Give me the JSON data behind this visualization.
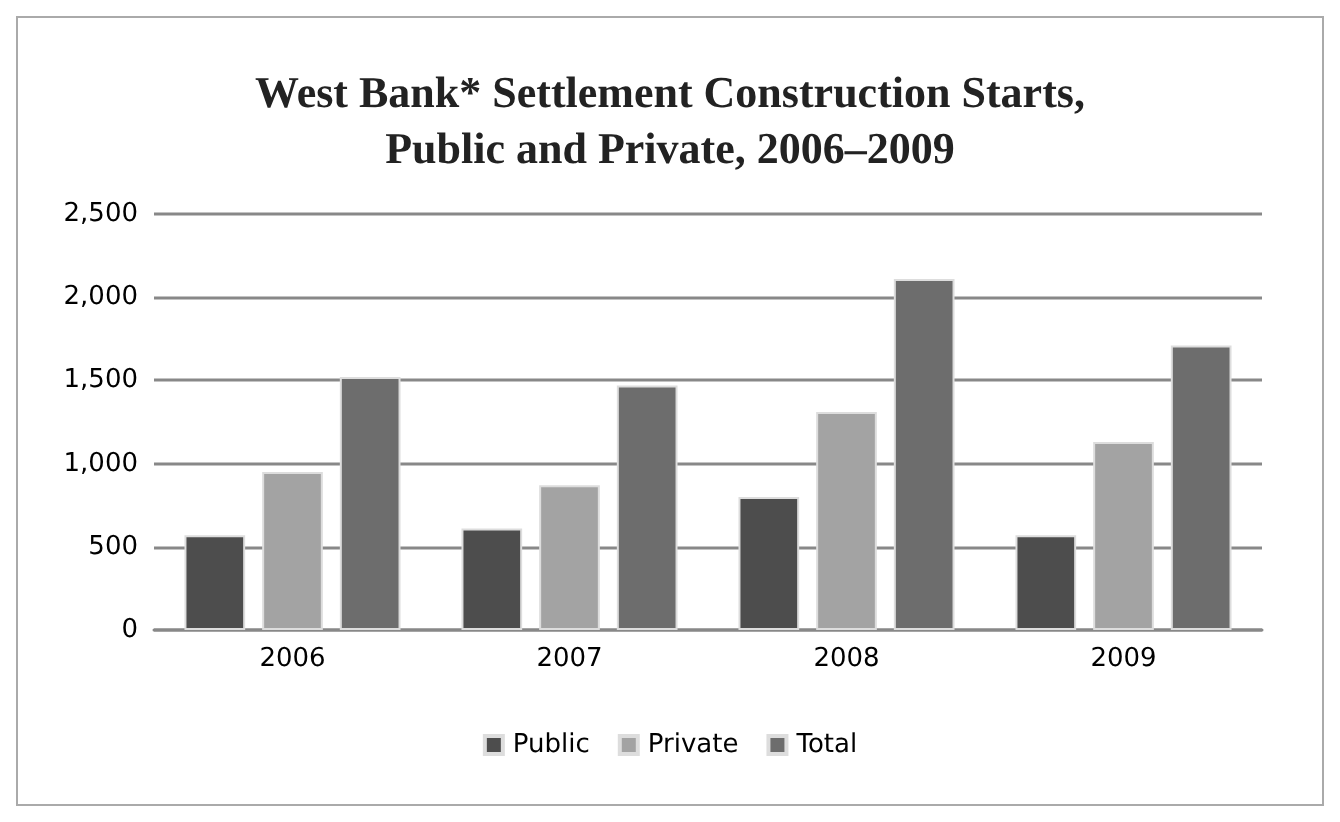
{
  "chart_data": {
    "type": "bar",
    "title": "West Bank* Settlement Construction Starts,\nPublic and Private, 2006–2009",
    "categories": [
      "2006",
      "2007",
      "2008",
      "2009"
    ],
    "series": [
      {
        "name": "Public",
        "color": "#4d4d4d",
        "values": [
          570,
          610,
          800,
          570
        ]
      },
      {
        "name": "Private",
        "color": "#a3a3a3",
        "values": [
          950,
          870,
          1310,
          1130
        ]
      },
      {
        "name": "Total",
        "color": "#6d6d6d",
        "values": [
          1520,
          1470,
          2110,
          1710
        ]
      }
    ],
    "ylim": [
      0,
      2500
    ],
    "yticks": [
      0,
      500,
      {
        "value": 1000,
        "label": "1,000"
      },
      {
        "value": 1500,
        "label": "1,500"
      },
      {
        "value": 2000,
        "label": "2,000"
      },
      {
        "value": 2500,
        "label": "2,500"
      }
    ],
    "grid": "y",
    "legend": "bottom"
  }
}
